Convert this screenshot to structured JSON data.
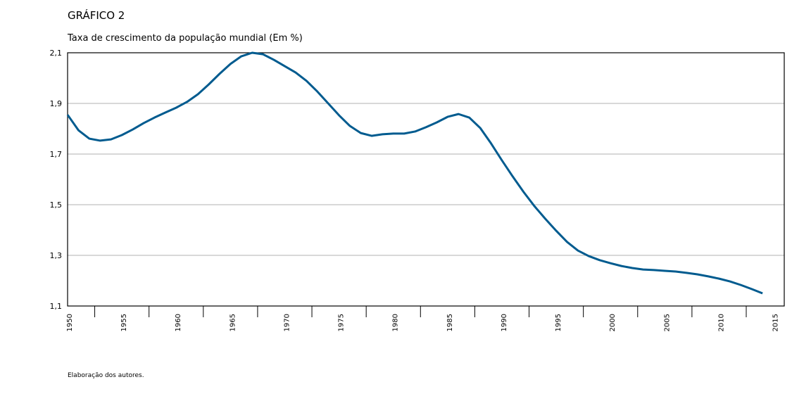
{
  "chart_data": {
    "type": "line",
    "title": "GRÁFICO 2",
    "subtitle": "Taxa de crescimento da população mundial (Em %)",
    "note": "Elaboração dos autores.",
    "x": [
      1950,
      1951,
      1952,
      1953,
      1954,
      1955,
      1956,
      1957,
      1958,
      1959,
      1960,
      1961,
      1962,
      1963,
      1964,
      1965,
      1966,
      1967,
      1968,
      1969,
      1970,
      1971,
      1972,
      1973,
      1974,
      1975,
      1976,
      1977,
      1978,
      1979,
      1980,
      1981,
      1982,
      1983,
      1984,
      1985,
      1986,
      1987,
      1988,
      1989,
      1990,
      1991,
      1992,
      1993,
      1994,
      1995,
      1996,
      1997,
      1998,
      1999,
      2000,
      2001,
      2002,
      2003,
      2004,
      2005,
      2006,
      2007,
      2008,
      2009,
      2010,
      2011,
      2012,
      2013,
      2014
    ],
    "series": [
      {
        "color": "#005b8f",
        "values": [
          1.855,
          1.794,
          1.761,
          1.753,
          1.758,
          1.775,
          1.797,
          1.822,
          1.844,
          1.864,
          1.883,
          1.906,
          1.936,
          1.975,
          2.017,
          2.056,
          2.086,
          2.1,
          2.094,
          2.072,
          2.047,
          2.022,
          1.989,
          1.947,
          1.9,
          1.853,
          1.811,
          1.783,
          1.772,
          1.778,
          1.781,
          1.781,
          1.789,
          1.806,
          1.825,
          1.847,
          1.858,
          1.844,
          1.803,
          1.742,
          1.675,
          1.611,
          1.55,
          1.494,
          1.444,
          1.397,
          1.353,
          1.319,
          1.297,
          1.281,
          1.269,
          1.258,
          1.25,
          1.244,
          1.242,
          1.239,
          1.236,
          1.231,
          1.225,
          1.217,
          1.208,
          1.197,
          1.183,
          1.167,
          1.15
        ]
      }
    ],
    "xlim": [
      1950,
      2016
    ],
    "xticks": [
      1950,
      1955,
      1960,
      1965,
      1970,
      1975,
      1980,
      1985,
      1990,
      1995,
      2000,
      2005,
      2010,
      2015
    ],
    "xminorticks": [
      1952.5,
      1957.5,
      1962.5,
      1967.5,
      1972.5,
      1977.5,
      1982.5,
      1987.5,
      1992.5,
      1997.5,
      2002.5,
      2007.5,
      2012.5
    ],
    "ylim": [
      1.1,
      2.1
    ],
    "yticks": [
      {
        "value": 1.1,
        "label": "1,1"
      },
      {
        "value": 1.3,
        "label": "1,3"
      },
      {
        "value": 1.5,
        "label": "1,5"
      },
      {
        "value": 1.7,
        "label": "1,7"
      },
      {
        "value": 1.9,
        "label": "1,9"
      },
      {
        "value": 2.1,
        "label": "2,1"
      }
    ],
    "grid": true
  }
}
